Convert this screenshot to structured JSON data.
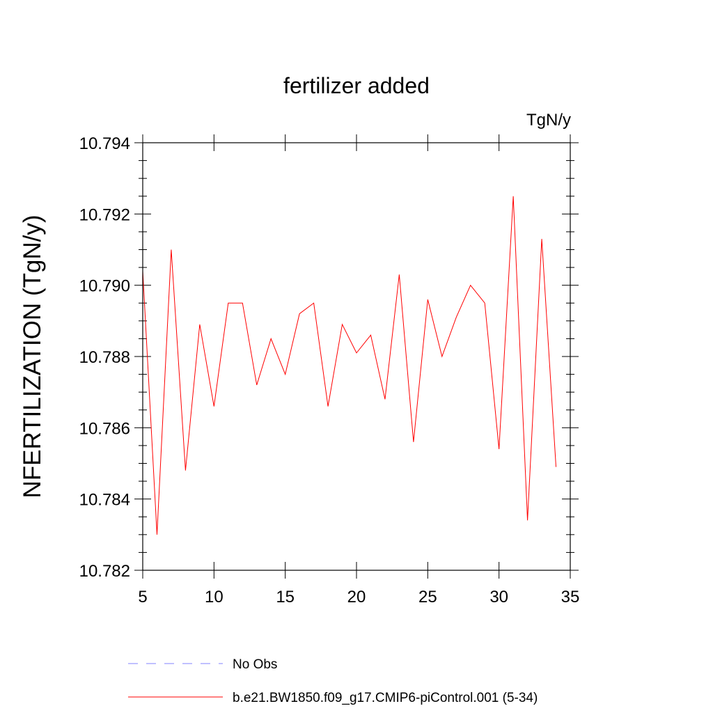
{
  "chart_data": {
    "type": "line",
    "title": "fertilizer added",
    "units_label": "TgN/y",
    "ylabel": "NFERTILIZATION  (TgN/y)",
    "xlabel": "",
    "xlim": [
      5,
      35
    ],
    "ylim": [
      10.782,
      10.794
    ],
    "x_ticks": [
      5,
      10,
      15,
      20,
      25,
      30,
      35
    ],
    "y_ticks": [
      "10.782",
      "10.784",
      "10.786",
      "10.788",
      "10.790",
      "10.792",
      "10.794"
    ],
    "grid": false,
    "legend_position": "bottom-center",
    "series": [
      {
        "name": "b.e21.BW1850.f09_g17.CMIP6-piControl.001 (5-34)",
        "color": "#ff0000",
        "style": "solid",
        "x": [
          5,
          6,
          7,
          8,
          9,
          10,
          11,
          12,
          13,
          14,
          15,
          16,
          17,
          18,
          19,
          20,
          21,
          22,
          23,
          24,
          25,
          26,
          27,
          28,
          29,
          30,
          31,
          32,
          33,
          34
        ],
        "values": [
          10.7904,
          10.783,
          10.791,
          10.7848,
          10.7889,
          10.7866,
          10.7895,
          10.7895,
          10.7872,
          10.7885,
          10.7875,
          10.7892,
          10.7895,
          10.7866,
          10.7889,
          10.7881,
          10.7886,
          10.7868,
          10.7903,
          10.7856,
          10.7896,
          10.788,
          10.7891,
          10.79,
          10.7895,
          10.7854,
          10.7925,
          10.7834,
          10.7913,
          10.7849
        ]
      },
      {
        "name": "No Obs",
        "color": "#8080ff",
        "style": "dashed",
        "x": [],
        "values": []
      }
    ]
  }
}
